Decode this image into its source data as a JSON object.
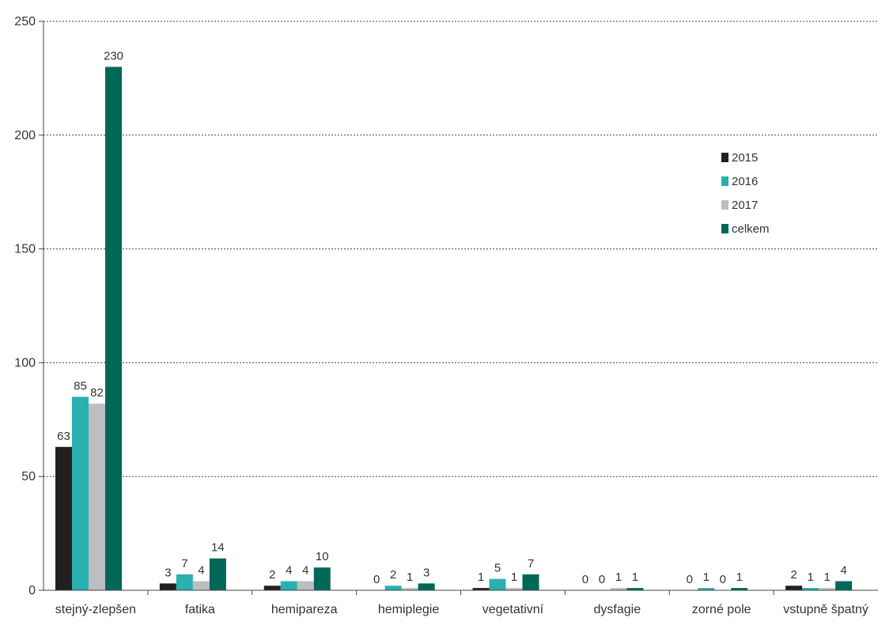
{
  "chart_data": {
    "type": "bar",
    "categories": [
      "stejný-zlepšen",
      "fatika",
      "hemipareza",
      "hemiplegie",
      "vegetativní",
      "dysfagie",
      "zorné pole",
      "vstupně špatný"
    ],
    "series": [
      {
        "name": "2015",
        "color": "#231f20",
        "values": [
          63,
          3,
          2,
          0,
          1,
          0,
          0,
          2
        ]
      },
      {
        "name": "2016",
        "color": "#2ab0b0",
        "values": [
          85,
          7,
          4,
          2,
          5,
          0,
          1,
          1
        ]
      },
      {
        "name": "2017",
        "color": "#bcbec0",
        "values": [
          82,
          4,
          4,
          1,
          1,
          1,
          0,
          1
        ]
      },
      {
        "name": "celkem",
        "color": "#006858",
        "values": [
          230,
          14,
          10,
          3,
          7,
          1,
          1,
          4
        ]
      }
    ],
    "ylim": [
      0,
      250
    ],
    "yticks": [
      0,
      50,
      100,
      150,
      200,
      250
    ],
    "grid": "horizontal-dotted",
    "legend_position": "right"
  }
}
